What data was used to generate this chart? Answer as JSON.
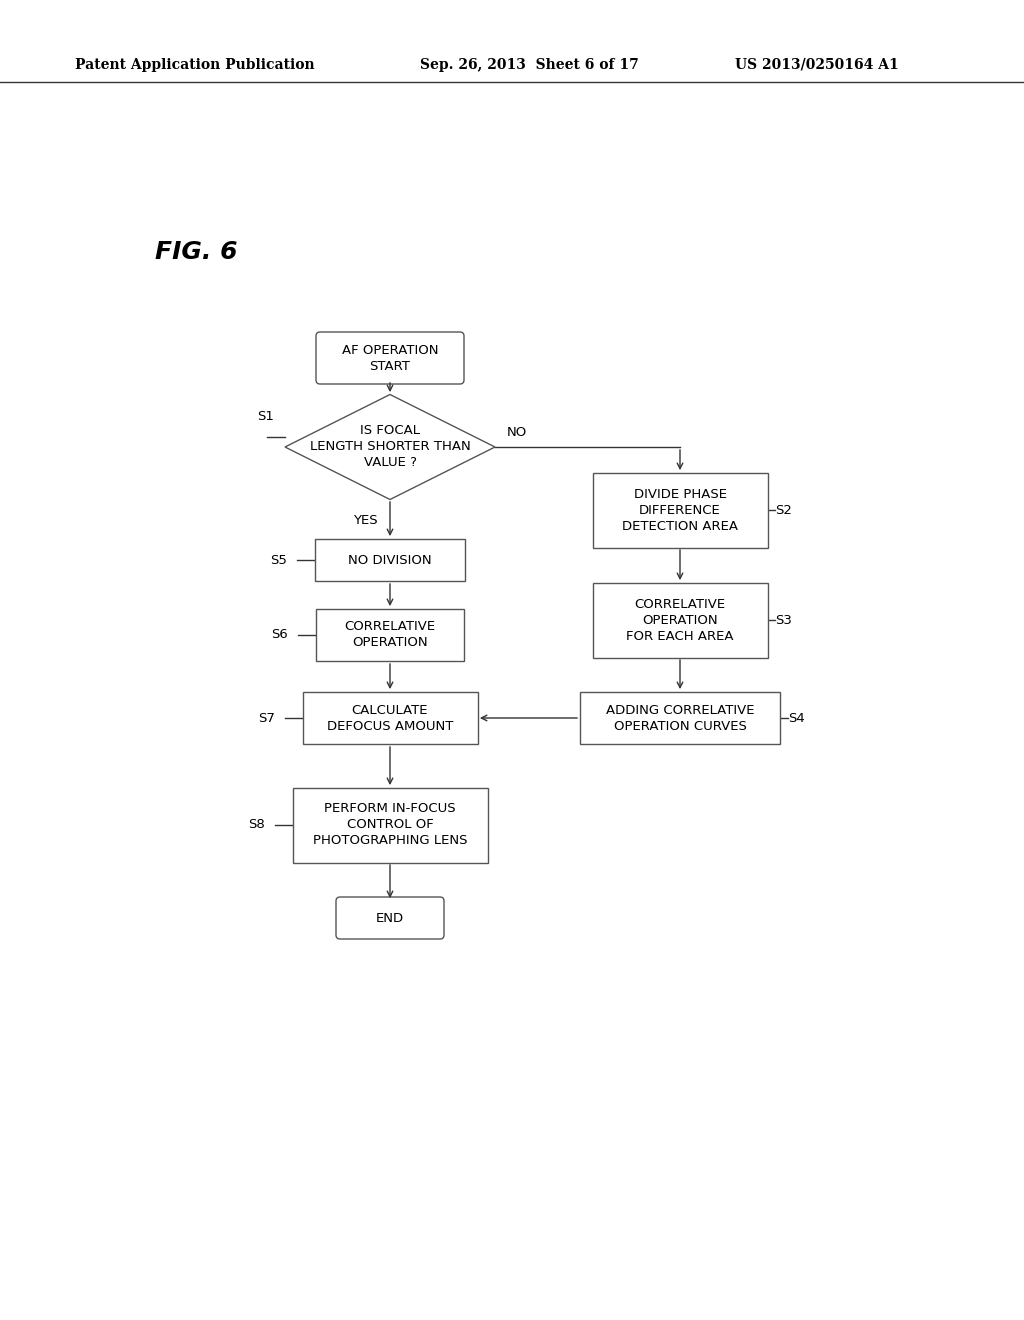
{
  "bg_color": "#ffffff",
  "header_left": "Patent Application Publication",
  "header_center": "Sep. 26, 2013  Sheet 6 of 17",
  "header_right": "US 2013/0250164 A1",
  "fig_label": "FIG. 6",
  "start_text": "AF OPERATION\nSTART",
  "diamond_text": "IS FOCAL\nLENGTH SHORTER THAN\nVALUE ?",
  "s5_text": "NO DIVISION",
  "s6_text": "CORRELATIVE\nOPERATION",
  "s7_text": "CALCULATE\nDEFOCUS AMOUNT",
  "s8_text": "PERFORM IN-FOCUS\nCONTROL OF\nPHOTOGRAPHING LENS",
  "end_text": "END",
  "s2_text": "DIVIDE PHASE\nDIFFERENCE\nDETECTION AREA",
  "s3_text": "CORRELATIVE\nOPERATION\nFOR EACH AREA",
  "s4_text": "ADDING CORRELATIVE\nOPERATION CURVES",
  "label_s1": "S1",
  "label_s5": "S5",
  "label_s6": "S6",
  "label_s7": "S7",
  "label_s8": "S8",
  "label_s2": "S2",
  "label_s3": "S3",
  "label_s4": "S4",
  "label_yes": "YES",
  "label_no": "NO"
}
